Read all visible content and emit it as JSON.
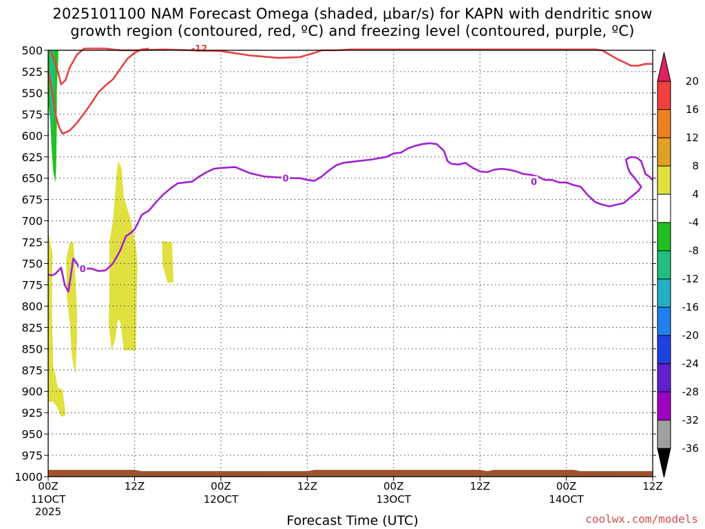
{
  "title_line1": "2025101100 NAM Forecast Omega (shaded, μbar/s) for KAPN with dendritic snow",
  "title_line2": "growth region (contoured, red, ºC) and freezing level (contoured, purple, ºC)",
  "xlabel": "Forecast Time (UTC)",
  "credit": "coolwx.com/models",
  "chart_data": {
    "type": "area",
    "x_ticks": [
      {
        "hours": 0,
        "line1": "00Z",
        "line2": "11OCT",
        "line3": "2025"
      },
      {
        "hours": 12,
        "line1": "12Z",
        "line2": "",
        "line3": ""
      },
      {
        "hours": 24,
        "line1": "00Z",
        "line2": "12OCT",
        "line3": ""
      },
      {
        "hours": 36,
        "line1": "12Z",
        "line2": "",
        "line3": ""
      },
      {
        "hours": 48,
        "line1": "00Z",
        "line2": "13OCT",
        "line3": ""
      },
      {
        "hours": 60,
        "line1": "12Z",
        "line2": "",
        "line3": ""
      },
      {
        "hours": 72,
        "line1": "00Z",
        "line2": "14OCT",
        "line3": ""
      },
      {
        "hours": 84,
        "line1": "12Z",
        "line2": "",
        "line3": ""
      }
    ],
    "xlim": [
      0,
      84
    ],
    "y_ticks": [
      "500",
      "525",
      "550",
      "575",
      "600",
      "625",
      "650",
      "675",
      "700",
      "725",
      "750",
      "775",
      "800",
      "825",
      "850",
      "875",
      "900",
      "925",
      "950",
      "975",
      "1000"
    ],
    "ylim": [
      1000,
      500
    ],
    "grid": true,
    "colorbar": {
      "labels": [
        "20",
        "16",
        "12",
        "8",
        "4",
        "-4",
        "-8",
        "-12",
        "-16",
        "-20",
        "-24",
        "-28",
        "-32",
        "-36"
      ],
      "colors_top_to_bottom": [
        "#e02060",
        "#f04040",
        "#f07f20",
        "#e0a020",
        "#e0e040",
        "#ffffff",
        "#20c020",
        "#20c080",
        "#20b0c0",
        "#2080f0",
        "#2040e0",
        "#6020d0",
        "#a000c0",
        "#a0a0a0",
        "#000000"
      ]
    },
    "shading_colors": {
      "yellow": "#e0e040",
      "green": "#20c020",
      "teal": "#20c080",
      "ground": "#a0522d"
    },
    "contours": [
      {
        "color": "#e84040",
        "label": "-12",
        "points": [
          [
            0.4,
            502
          ],
          [
            1.2,
            520
          ],
          [
            1.8,
            540
          ],
          [
            2.4,
            535
          ],
          [
            3.0,
            520
          ],
          [
            4,
            505
          ],
          [
            5,
            498
          ],
          [
            8,
            498
          ],
          [
            10,
            500
          ],
          [
            12,
            500
          ],
          [
            16,
            499
          ],
          [
            20,
            500
          ],
          [
            24,
            501
          ],
          [
            28,
            506
          ],
          [
            32,
            509
          ],
          [
            35,
            508
          ],
          [
            37,
            503
          ],
          [
            38,
            500
          ],
          [
            40,
            500
          ],
          [
            42,
            499
          ],
          [
            44,
            499
          ],
          [
            46,
            499
          ],
          [
            50,
            499
          ],
          [
            53,
            499
          ],
          [
            56,
            499
          ],
          [
            60,
            499
          ],
          [
            64,
            499
          ],
          [
            68,
            499
          ],
          [
            72,
            499
          ],
          [
            76,
            499
          ],
          [
            77,
            500
          ],
          [
            78,
            505
          ],
          [
            79,
            510
          ],
          [
            80,
            514
          ],
          [
            81,
            518
          ],
          [
            82,
            518
          ],
          [
            83,
            516
          ],
          [
            84,
            516
          ]
        ]
      },
      {
        "color": "#e84040",
        "label": "",
        "points": [
          [
            0,
            525
          ],
          [
            0.5,
            545
          ],
          [
            1,
            575
          ],
          [
            1.5,
            590
          ],
          [
            2,
            598
          ],
          [
            3,
            594
          ],
          [
            4,
            585
          ],
          [
            5,
            574
          ],
          [
            6,
            562
          ],
          [
            7,
            549
          ],
          [
            8,
            541
          ],
          [
            9,
            534
          ],
          [
            10,
            522
          ],
          [
            11,
            510
          ],
          [
            12,
            503
          ],
          [
            13,
            499
          ],
          [
            14,
            498
          ]
        ]
      },
      {
        "color": "#a020d0",
        "label": "0",
        "points": [
          [
            0,
            763
          ],
          [
            0.5,
            764
          ],
          [
            1,
            762
          ],
          [
            1.8,
            755
          ],
          [
            2.3,
            775
          ],
          [
            2.8,
            783
          ],
          [
            3.2,
            761
          ],
          [
            3.5,
            744
          ],
          [
            4,
            750
          ],
          [
            4.5,
            759
          ],
          [
            5,
            756
          ],
          [
            6,
            756
          ],
          [
            7,
            759
          ],
          [
            8,
            758
          ],
          [
            9,
            750
          ],
          [
            10,
            735
          ],
          [
            10.8,
            718
          ],
          [
            11.5,
            714
          ],
          [
            12,
            710
          ],
          [
            12.5,
            702
          ],
          [
            13,
            693
          ],
          [
            14,
            688
          ],
          [
            15,
            678
          ],
          [
            16,
            669
          ],
          [
            17,
            662
          ],
          [
            18,
            656
          ],
          [
            19,
            655
          ],
          [
            20,
            654
          ],
          [
            21,
            648
          ],
          [
            22,
            643
          ],
          [
            23,
            639
          ],
          [
            24,
            638
          ],
          [
            26,
            637
          ],
          [
            28,
            644
          ],
          [
            30,
            648
          ],
          [
            32,
            649
          ],
          [
            34,
            650
          ],
          [
            35,
            650
          ],
          [
            36,
            652
          ],
          [
            37,
            653
          ],
          [
            38,
            648
          ],
          [
            39,
            641
          ],
          [
            40,
            635
          ],
          [
            41,
            632
          ],
          [
            43,
            630
          ],
          [
            45,
            628
          ],
          [
            47,
            625
          ],
          [
            48,
            621
          ],
          [
            49,
            620
          ],
          [
            50,
            615
          ],
          [
            51,
            612
          ],
          [
            52,
            610
          ],
          [
            53,
            609
          ],
          [
            54,
            610
          ],
          [
            55,
            618
          ],
          [
            55.5,
            630
          ],
          [
            56,
            633
          ],
          [
            57,
            634
          ],
          [
            58,
            632
          ],
          [
            59,
            638
          ],
          [
            60,
            642
          ],
          [
            61,
            643
          ],
          [
            62,
            640
          ],
          [
            63,
            639
          ],
          [
            64,
            640
          ],
          [
            65,
            642
          ],
          [
            66,
            645
          ],
          [
            67,
            646
          ],
          [
            68,
            648
          ],
          [
            69,
            652
          ],
          [
            70,
            652
          ],
          [
            71,
            655
          ],
          [
            72,
            655
          ],
          [
            73,
            658
          ],
          [
            74,
            660
          ],
          [
            75,
            670
          ],
          [
            76,
            678
          ],
          [
            77,
            681
          ],
          [
            78,
            683
          ],
          [
            79,
            681
          ],
          [
            80,
            679
          ],
          [
            81,
            672
          ],
          [
            82,
            665
          ],
          [
            82.4,
            660
          ],
          [
            81.5,
            650
          ],
          [
            80.8,
            643
          ],
          [
            80.5,
            636
          ],
          [
            80.3,
            628
          ],
          [
            81,
            625
          ],
          [
            81.8,
            626
          ],
          [
            82.4,
            630
          ],
          [
            83,
            645
          ],
          [
            83.5,
            648
          ],
          [
            84,
            652
          ]
        ]
      }
    ],
    "omega_shading": [
      {
        "color": "#e0e040",
        "points": [
          [
            0,
            713
          ],
          [
            0.6,
            738
          ],
          [
            0.5,
            800
          ],
          [
            0.7,
            870
          ],
          [
            1,
            880
          ],
          [
            1.3,
            895
          ],
          [
            2,
            898
          ],
          [
            2.3,
            918
          ],
          [
            2.4,
            928
          ],
          [
            1.8,
            930
          ],
          [
            1.2,
            918
          ],
          [
            0.7,
            912
          ],
          [
            0,
            912
          ]
        ]
      },
      {
        "color": "#e0e040",
        "points": [
          [
            2.5,
            745
          ],
          [
            3,
            725
          ],
          [
            3.5,
            725
          ],
          [
            3.8,
            770
          ],
          [
            4,
            803
          ],
          [
            4,
            840
          ],
          [
            3.8,
            880
          ],
          [
            3.3,
            860
          ],
          [
            3,
            820
          ],
          [
            2.6,
            790
          ]
        ]
      },
      {
        "color": "#e0e040",
        "points": [
          [
            8.5,
            790
          ],
          [
            8.5,
            725
          ],
          [
            9,
            700
          ],
          [
            9.5,
            645
          ],
          [
            9.7,
            630
          ],
          [
            10.2,
            638
          ],
          [
            10.5,
            672
          ],
          [
            11,
            685
          ],
          [
            11.5,
            700
          ],
          [
            12.2,
            730
          ],
          [
            12.4,
            750
          ],
          [
            12.3,
            790
          ],
          [
            12.2,
            852
          ],
          [
            10.5,
            852
          ],
          [
            10.2,
            830
          ],
          [
            10,
            818
          ],
          [
            9.7,
            815
          ],
          [
            9.3,
            840
          ],
          [
            8.8,
            852
          ],
          [
            8.4,
            820
          ]
        ]
      },
      {
        "color": "#e0e040",
        "points": [
          [
            15.8,
            724
          ],
          [
            17.2,
            725
          ],
          [
            17.4,
            772
          ],
          [
            16.6,
            773
          ],
          [
            15.9,
            752
          ]
        ]
      },
      {
        "color": "#20c020",
        "points": [
          [
            0,
            500
          ],
          [
            1.4,
            500
          ],
          [
            1.4,
            510
          ],
          [
            1.3,
            525
          ],
          [
            1.2,
            550
          ],
          [
            1.2,
            590
          ],
          [
            1.1,
            640
          ],
          [
            1,
            655
          ],
          [
            0.7,
            642
          ],
          [
            0.5,
            618
          ],
          [
            0.3,
            585
          ],
          [
            0,
            560
          ]
        ]
      },
      {
        "color": "#20c080",
        "points": [
          [
            0.2,
            500
          ],
          [
            0.8,
            500
          ],
          [
            0.9,
            530
          ],
          [
            0.85,
            560
          ],
          [
            0.7,
            580
          ],
          [
            0.4,
            595
          ],
          [
            0.3,
            560
          ],
          [
            0.25,
            525
          ]
        ]
      }
    ]
  }
}
